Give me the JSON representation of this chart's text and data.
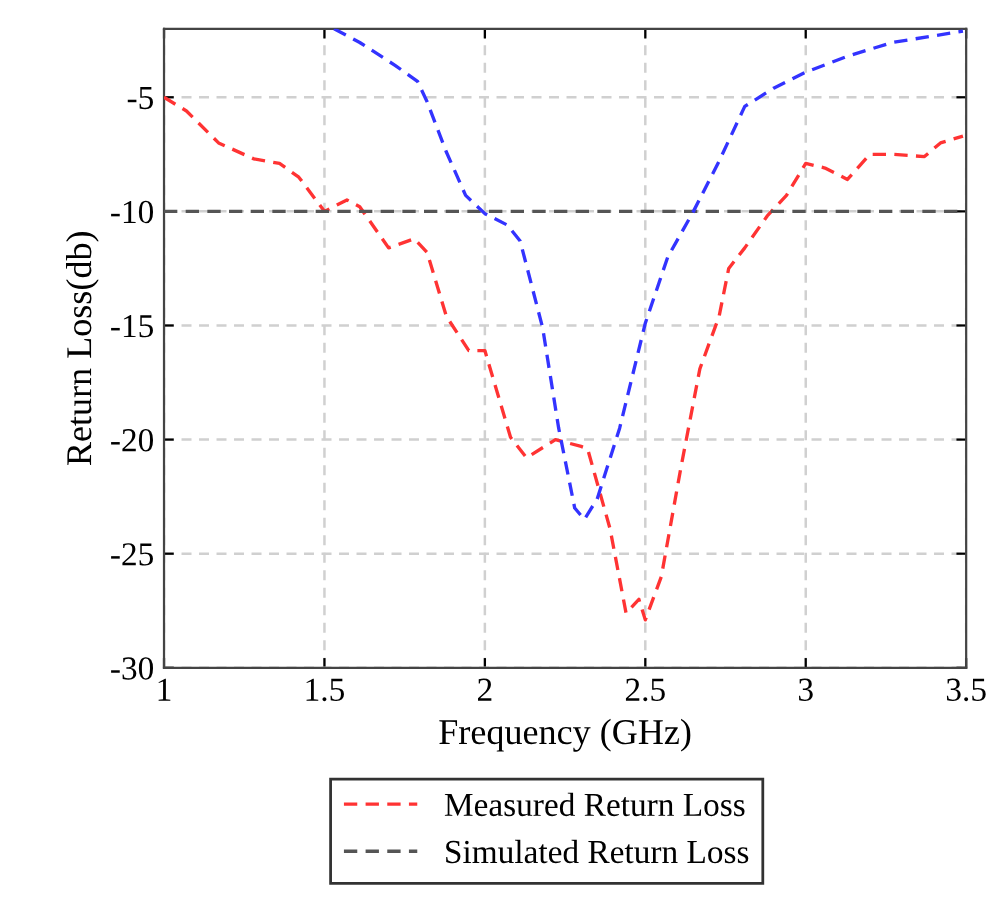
{
  "chart_data": {
    "type": "line",
    "xlabel": "Frequency (GHz)",
    "ylabel": "Return Loss(db)",
    "xlim": [
      1,
      3.5
    ],
    "xticks": [
      1,
      1.5,
      2,
      2.5,
      3,
      3.5
    ],
    "ylim": [
      -30,
      -2
    ],
    "yticks": [
      -30,
      -25,
      -20,
      -15,
      -10,
      -5
    ],
    "grid": true,
    "legend": "bottom",
    "line_style": "dashed",
    "marker": "none",
    "series": [
      {
        "name": "Measured Return Loss",
        "color": "#ff3333",
        "x": [
          1.0,
          1.07,
          1.17,
          1.28,
          1.36,
          1.42,
          1.5,
          1.57,
          1.61,
          1.7,
          1.78,
          1.82,
          1.88,
          1.95,
          2.0,
          2.08,
          2.13,
          2.22,
          2.3,
          2.32,
          2.39,
          2.44,
          2.48,
          2.5,
          2.55,
          2.61,
          2.67,
          2.73,
          2.76,
          2.81,
          2.88,
          2.94,
          3.0,
          3.06,
          3.13,
          3.2,
          3.27,
          3.37,
          3.42,
          3.49
        ],
        "values": [
          -5.0,
          -5.6,
          -7.0,
          -7.7,
          -7.9,
          -8.5,
          -10.0,
          -9.5,
          -9.8,
          -11.6,
          -11.2,
          -11.8,
          -14.6,
          -16.1,
          -16.1,
          -19.9,
          -20.8,
          -20.0,
          -20.3,
          -20.4,
          -23.9,
          -27.6,
          -27.0,
          -27.9,
          -26.0,
          -21.3,
          -16.9,
          -14.6,
          -12.5,
          -11.6,
          -10.2,
          -9.3,
          -7.9,
          -8.1,
          -8.6,
          -7.5,
          -7.5,
          -7.6,
          -7.0,
          -6.7
        ]
      },
      {
        "name": "Simulated Return Loss",
        "color": "#555555",
        "x": [
          1.0,
          3.5
        ],
        "values": [
          -10.0,
          -10.0
        ]
      },
      {
        "color": "#3333ff",
        "x": [
          1.53,
          1.61,
          1.72,
          1.79,
          1.82,
          1.88,
          1.94,
          2.0,
          2.07,
          2.11,
          2.18,
          2.23,
          2.28,
          2.31,
          2.35,
          2.42,
          2.5,
          2.57,
          2.65,
          2.73,
          2.81,
          2.9,
          3.0,
          3.13,
          3.27,
          3.49
        ],
        "values": [
          -2.0,
          -2.6,
          -3.6,
          -4.3,
          -5.2,
          -7.4,
          -9.3,
          -10.1,
          -10.6,
          -11.3,
          -15.1,
          -19.5,
          -23.0,
          -23.5,
          -22.6,
          -19.5,
          -14.9,
          -12.0,
          -10.0,
          -7.8,
          -5.4,
          -4.6,
          -3.9,
          -3.2,
          -2.6,
          -2.1
        ]
      }
    ]
  }
}
